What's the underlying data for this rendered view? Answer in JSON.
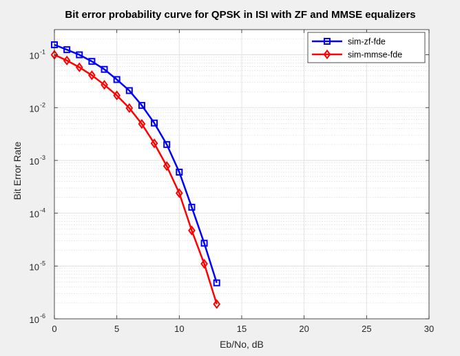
{
  "chart_data": {
    "type": "line",
    "title": "Bit error probability curve for QPSK in ISI with ZF and MMSE equalizers",
    "xlabel": "Eb/No, dB",
    "ylabel": "Bit Error Rate",
    "xlim": [
      0,
      30
    ],
    "ylim": [
      1e-06,
      0.3
    ],
    "y_scale": "log",
    "grid": true,
    "minor_grid": true,
    "legend_position": "top-right",
    "x_ticks": [
      {
        "value": 0,
        "label": "0"
      },
      {
        "value": 5,
        "label": "5"
      },
      {
        "value": 10,
        "label": "10"
      },
      {
        "value": 15,
        "label": "15"
      },
      {
        "value": 20,
        "label": "20"
      },
      {
        "value": 25,
        "label": "25"
      },
      {
        "value": 30,
        "label": "30"
      }
    ],
    "y_ticks": [
      {
        "value": 1e-06,
        "base": "10",
        "exp": "-6"
      },
      {
        "value": 1e-05,
        "base": "10",
        "exp": "-5"
      },
      {
        "value": 0.0001,
        "base": "10",
        "exp": "-4"
      },
      {
        "value": 0.001,
        "base": "10",
        "exp": "-3"
      },
      {
        "value": 0.01,
        "base": "10",
        "exp": "-2"
      },
      {
        "value": 0.1,
        "base": "10",
        "exp": "-1"
      }
    ],
    "series": [
      {
        "name": "sim-zf-fde",
        "color": "#0000ff",
        "marker": "square",
        "x": [
          0,
          1,
          2,
          3,
          4,
          5,
          6,
          7,
          8,
          9,
          10,
          11,
          12,
          13
        ],
        "y": [
          0.155,
          0.125,
          0.1,
          0.075,
          0.053,
          0.034,
          0.021,
          0.011,
          0.0051,
          0.002,
          0.0006,
          0.00013,
          2.7e-05,
          4.8e-06
        ]
      },
      {
        "name": "sim-mmse-fde",
        "color": "#ff0000",
        "marker": "diamond",
        "x": [
          0,
          1,
          2,
          3,
          4,
          5,
          6,
          7,
          8,
          9,
          10,
          11,
          12,
          13
        ],
        "y": [
          0.1,
          0.078,
          0.058,
          0.041,
          0.027,
          0.017,
          0.0098,
          0.0049,
          0.0021,
          0.00078,
          0.00024,
          4.7e-05,
          1.1e-05,
          1.9e-06
        ]
      }
    ]
  }
}
